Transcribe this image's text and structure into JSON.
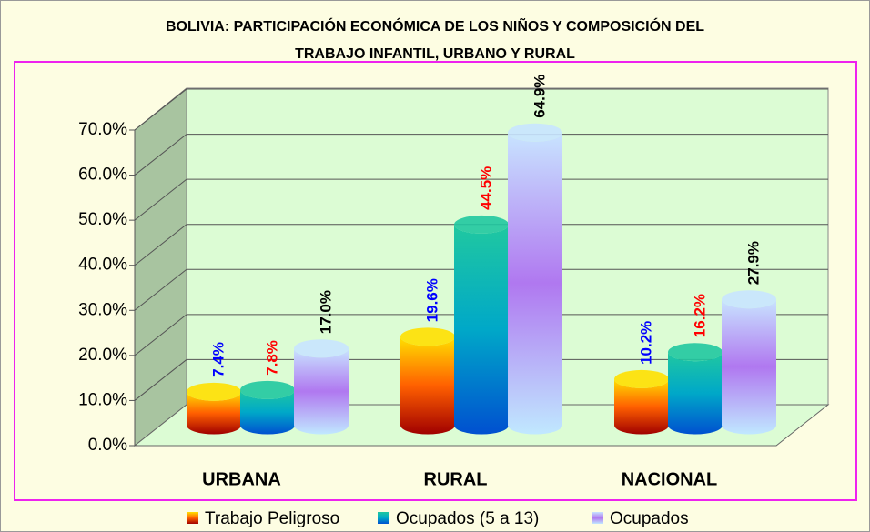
{
  "chart_data": {
    "type": "bar3d",
    "title": [
      "BOLIVIA: PARTICIPACIÓN ECONÓMICA DE LOS NIÑOS Y COMPOSICIÓN DEL",
      "TRABAJO INFANTIL, URBANO Y RURAL"
    ],
    "categories": [
      "URBANA",
      "RURAL",
      "NACIONAL"
    ],
    "series": [
      {
        "name": "Trabajo Peligroso",
        "color": "#f08000",
        "gradient": [
          "#ffe000",
          "#ff6000",
          "#a00000"
        ],
        "label_color": "#0000ff",
        "values": [
          7.4,
          19.6,
          10.2
        ],
        "value_labels": [
          "7.4%",
          "19.6%",
          "10.2%"
        ]
      },
      {
        "name": "Ocupados (5 a 13)",
        "color": "#00a0c0",
        "gradient": [
          "#20c8a0",
          "#00a8c8",
          "#0050d0"
        ],
        "label_color": "#ff0000",
        "values": [
          7.8,
          44.5,
          16.2
        ],
        "value_labels": [
          "7.8%",
          "44.5%",
          "16.2%"
        ]
      },
      {
        "name": "Ocupados",
        "color": "#a898f0",
        "gradient": [
          "#c8e4ff",
          "#b078f0",
          "#c0e8ff"
        ],
        "label_color": "#000000",
        "values": [
          17.0,
          64.9,
          27.9
        ],
        "value_labels": [
          "17.0%",
          "64.9%",
          "27.9%"
        ]
      }
    ],
    "ylim": [
      0,
      70
    ],
    "yticks": [
      {
        "value": 0,
        "label": "0.0%"
      },
      {
        "value": 10,
        "label": "10.0%"
      },
      {
        "value": 20,
        "label": "20.0%"
      },
      {
        "value": 30,
        "label": "30.0%"
      },
      {
        "value": 40,
        "label": "40.0%"
      },
      {
        "value": 50,
        "label": "50.0%"
      },
      {
        "value": 60,
        "label": "60.0%"
      },
      {
        "value": 70,
        "label": "70.0%"
      }
    ],
    "grid": true
  }
}
